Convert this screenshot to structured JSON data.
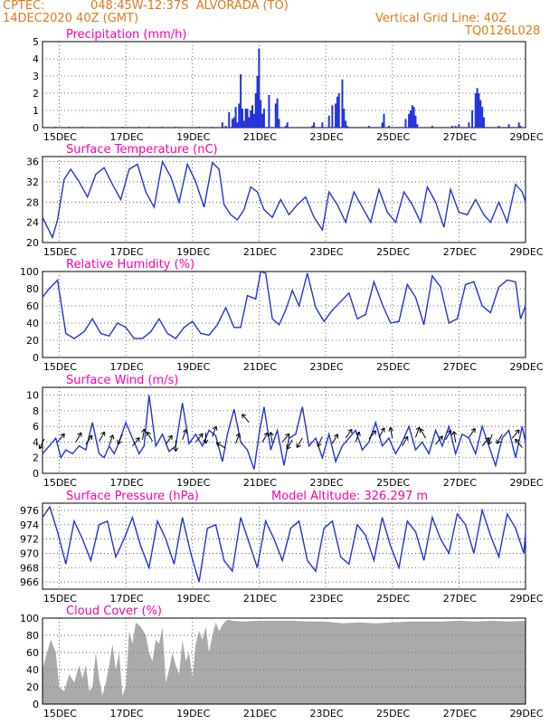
{
  "header": {
    "source": "CPTEC:",
    "location": "048:45W-12:37S  ALVORADA (TO)",
    "run": "14DEC2020 40Z (GMT)",
    "grid_note": "Vertical Grid Line: 40Z",
    "code": "TQ0126L028"
  },
  "colors": {
    "line": "#2233dd",
    "bar": "#2233dd",
    "cloud": "#aaaaaa",
    "title": "#ff00aa",
    "header": "#e07a1a"
  },
  "chart_data": [
    {
      "id": "precipitation",
      "type": "bar",
      "title": "Precipitation (mm/h)",
      "ylim": [
        0,
        5
      ],
      "yticks": [
        "0",
        "1",
        "2",
        "3",
        "4",
        "5"
      ],
      "xlabels": [
        "15DEC",
        "17DEC",
        "19DEC",
        "21DEC",
        "23DEC",
        "25DEC",
        "27DEC",
        "29DEC"
      ],
      "day_start": 14.5,
      "day_end": 29.0,
      "x": [
        14.9,
        15.3,
        15.7,
        16.3,
        16.9,
        17.4,
        17.7,
        18.1,
        18.5,
        19.2,
        19.6,
        19.9,
        20.0,
        20.1,
        20.2,
        20.25,
        20.3,
        20.35,
        20.4,
        20.45,
        20.5,
        20.55,
        20.6,
        20.65,
        20.7,
        20.75,
        20.8,
        20.85,
        20.9,
        20.95,
        21.0,
        21.05,
        21.1,
        21.15,
        21.3,
        21.5,
        21.55,
        21.6,
        21.8,
        21.85,
        22.6,
        22.65,
        22.9,
        23.1,
        23.2,
        23.3,
        23.35,
        23.4,
        23.5,
        23.55,
        23.6,
        23.65,
        24.3,
        24.7,
        24.75,
        24.9,
        25.4,
        25.5,
        25.55,
        25.6,
        25.65,
        25.7,
        25.75,
        26.2,
        26.8,
        26.9,
        27.0,
        27.3,
        27.4,
        27.5,
        27.55,
        27.6,
        27.65,
        27.7,
        27.75,
        28.2,
        28.5,
        28.8,
        28.85
      ],
      "values": [
        0.05,
        0.05,
        0.05,
        0.05,
        0.05,
        0.05,
        0.05,
        0.05,
        0.05,
        0.05,
        0.05,
        0.3,
        0.1,
        0.9,
        0.5,
        0.6,
        1.2,
        0.3,
        1.4,
        3.1,
        1.1,
        0.4,
        1.1,
        1.1,
        0.6,
        1.0,
        1.3,
        0.8,
        2.0,
        3.0,
        4.6,
        1.6,
        0.8,
        1.1,
        1.9,
        1.4,
        1.7,
        0.5,
        0.1,
        0.3,
        0.1,
        0.3,
        0.3,
        0.7,
        1.3,
        1.4,
        1.8,
        2.0,
        2.8,
        1.1,
        0.4,
        0.1,
        0.1,
        0.3,
        0.8,
        0.1,
        0.5,
        0.8,
        1.0,
        1.3,
        1.2,
        0.7,
        0.2,
        0.1,
        0.1,
        0.1,
        0.2,
        0.3,
        1.0,
        2.0,
        2.3,
        2.0,
        1.6,
        1.2,
        0.6,
        0.1,
        0.2,
        0.3,
        0.1
      ]
    },
    {
      "id": "temperature",
      "type": "line",
      "title": "Surface Temperature (nC)",
      "ylim": [
        20,
        37
      ],
      "yticks": [
        "20",
        "24",
        "28",
        "32",
        "36"
      ],
      "xlabels": [
        "15DEC",
        "17DEC",
        "19DEC",
        "21DEC",
        "23DEC",
        "25DEC",
        "27DEC",
        "29DEC"
      ],
      "day_start": 14.5,
      "day_end": 29.0,
      "x": [
        14.5,
        14.8,
        14.95,
        15.15,
        15.35,
        15.6,
        15.85,
        16.1,
        16.35,
        16.6,
        16.85,
        17.1,
        17.35,
        17.6,
        17.85,
        18.1,
        18.35,
        18.6,
        18.85,
        19.1,
        19.35,
        19.6,
        19.8,
        19.95,
        20.15,
        20.35,
        20.55,
        20.75,
        20.95,
        21.15,
        21.4,
        21.65,
        21.9,
        22.15,
        22.4,
        22.65,
        22.9,
        23.1,
        23.35,
        23.6,
        23.85,
        24.1,
        24.35,
        24.6,
        24.85,
        25.1,
        25.35,
        25.6,
        25.85,
        26.05,
        26.3,
        26.55,
        26.75,
        27.0,
        27.25,
        27.5,
        27.75,
        27.95,
        28.2,
        28.45,
        28.7,
        28.9,
        29.0
      ],
      "values": [
        25,
        21.0,
        24.5,
        32.5,
        34.5,
        32.0,
        29.0,
        33.5,
        34.8,
        31.5,
        28.5,
        34.5,
        35.5,
        30.0,
        27.0,
        36.0,
        33.0,
        28.0,
        35.5,
        32.0,
        27.0,
        35.8,
        34.5,
        27.5,
        25.5,
        24.5,
        26.5,
        31.0,
        30.0,
        26.5,
        25.0,
        28.5,
        25.5,
        27.5,
        29.0,
        25.0,
        22.5,
        30.0,
        27.5,
        24.0,
        30.0,
        27.0,
        24.0,
        30.5,
        26.0,
        24.0,
        30.0,
        27.5,
        24.0,
        31.0,
        28.0,
        23.0,
        30.5,
        26.0,
        25.5,
        28.5,
        25.5,
        24.0,
        28.0,
        24.0,
        31.5,
        30.0,
        28.0
      ]
    },
    {
      "id": "humidity",
      "type": "line",
      "title": "Relative Humidity (%)",
      "ylim": [
        0,
        100
      ],
      "yticks": [
        "0",
        "20",
        "40",
        "60",
        "80",
        "100"
      ],
      "xlabels": [
        "15DEC",
        "17DEC",
        "19DEC",
        "21DEC",
        "23DEC",
        "25DEC",
        "27DEC",
        "29DEC"
      ],
      "day_start": 14.5,
      "day_end": 29.0,
      "x": [
        14.5,
        14.7,
        14.95,
        15.2,
        15.45,
        15.75,
        16.0,
        16.25,
        16.5,
        16.75,
        17.0,
        17.25,
        17.5,
        17.75,
        18.0,
        18.25,
        18.5,
        18.75,
        19.0,
        19.25,
        19.5,
        19.75,
        20.0,
        20.25,
        20.45,
        20.65,
        20.9,
        21.05,
        21.2,
        21.4,
        21.6,
        21.8,
        22.0,
        22.2,
        22.45,
        22.7,
        22.95,
        23.2,
        23.45,
        23.7,
        23.95,
        24.2,
        24.45,
        24.7,
        24.95,
        25.2,
        25.45,
        25.7,
        25.95,
        26.2,
        26.45,
        26.7,
        26.95,
        27.2,
        27.45,
        27.7,
        27.95,
        28.2,
        28.45,
        28.7,
        28.85,
        29.0
      ],
      "values": [
        70,
        80,
        90,
        28,
        22,
        30,
        45,
        28,
        25,
        40,
        35,
        22,
        22,
        30,
        45,
        28,
        22,
        35,
        42,
        28,
        26,
        38,
        58,
        35,
        35,
        72,
        68,
        100,
        98,
        45,
        38,
        55,
        78,
        60,
        98,
        58,
        42,
        55,
        65,
        75,
        45,
        50,
        88,
        62,
        40,
        42,
        85,
        70,
        38,
        95,
        82,
        40,
        45,
        85,
        88,
        60,
        52,
        82,
        90,
        88,
        45,
        60
      ]
    },
    {
      "id": "wind",
      "type": "line",
      "title": "Surface Wind (m/s)",
      "ylim": [
        0,
        11
      ],
      "yticks": [
        "0",
        "2",
        "4",
        "6",
        "8",
        "10"
      ],
      "xlabels": [
        "15DEC",
        "17DEC",
        "19DEC",
        "21DEC",
        "23DEC",
        "25DEC",
        "27DEC",
        "29DEC"
      ],
      "day_start": 14.5,
      "day_end": 29.0,
      "x": [
        14.5,
        14.7,
        14.9,
        15.05,
        15.2,
        15.4,
        15.6,
        15.8,
        16.0,
        16.2,
        16.35,
        16.5,
        16.65,
        16.8,
        17.0,
        17.2,
        17.4,
        17.55,
        17.7,
        17.9,
        18.1,
        18.3,
        18.5,
        18.7,
        18.9,
        19.1,
        19.3,
        19.5,
        19.7,
        19.9,
        20.05,
        20.25,
        20.45,
        20.65,
        20.85,
        21.0,
        21.15,
        21.35,
        21.55,
        21.75,
        21.9,
        22.1,
        22.3,
        22.5,
        22.7,
        22.9,
        23.1,
        23.3,
        23.5,
        23.7,
        23.9,
        24.1,
        24.3,
        24.5,
        24.7,
        24.9,
        25.1,
        25.3,
        25.5,
        25.7,
        25.9,
        26.1,
        26.3,
        26.5,
        26.7,
        26.9,
        27.1,
        27.3,
        27.5,
        27.7,
        27.9,
        28.1,
        28.3,
        28.5,
        28.7,
        28.9,
        29.0
      ],
      "values": [
        2.5,
        3.5,
        4.5,
        2.0,
        3.0,
        2.5,
        3.5,
        3.0,
        6.5,
        2.5,
        2.0,
        3.5,
        2.5,
        4.0,
        6.5,
        4.5,
        2.5,
        3.5,
        10.0,
        3.5,
        5.0,
        2.8,
        3.5,
        9.0,
        3.8,
        5.0,
        3.5,
        5.5,
        4.8,
        1.5,
        5.0,
        8.2,
        4.0,
        3.0,
        0.5,
        5.0,
        8.5,
        3.0,
        5.5,
        1.0,
        4.5,
        5.0,
        8.5,
        3.5,
        4.5,
        2.0,
        5.0,
        1.5,
        3.5,
        4.5,
        5.5,
        3.0,
        4.0,
        6.5,
        3.5,
        4.5,
        2.5,
        4.0,
        6.0,
        3.0,
        4.0,
        2.5,
        5.5,
        3.5,
        6.0,
        2.5,
        5.0,
        4.5,
        2.5,
        6.0,
        3.5,
        1.0,
        4.5,
        5.5,
        2.0,
        6.0,
        4.0
      ],
      "arrows": [
        {
          "x": 14.55,
          "y": 4.4,
          "dir": 205
        },
        {
          "x": 14.95,
          "y": 4.0,
          "dir": 40
        },
        {
          "x": 15.5,
          "y": 4.0,
          "dir": 30
        },
        {
          "x": 15.8,
          "y": 3.7,
          "dir": 35
        },
        {
          "x": 16.2,
          "y": 4.1,
          "dir": 30
        },
        {
          "x": 16.5,
          "y": 3.6,
          "dir": 20
        },
        {
          "x": 16.9,
          "y": 5.0,
          "dir": 205
        },
        {
          "x": 17.2,
          "y": 3.5,
          "dir": 40
        },
        {
          "x": 17.5,
          "y": 4.3,
          "dir": 10
        },
        {
          "x": 17.8,
          "y": 4.1,
          "dir": 330
        },
        {
          "x": 18.2,
          "y": 3.7,
          "dir": 35
        },
        {
          "x": 18.5,
          "y": 4.2,
          "dir": 180
        },
        {
          "x": 18.7,
          "y": 4.3,
          "dir": 20
        },
        {
          "x": 19.1,
          "y": 4.0,
          "dir": 40
        },
        {
          "x": 19.4,
          "y": 5.2,
          "dir": 180
        },
        {
          "x": 19.6,
          "y": 4.7,
          "dir": 20
        },
        {
          "x": 20.0,
          "y": 3.2,
          "dir": 300
        },
        {
          "x": 20.3,
          "y": 3.8,
          "dir": 20
        },
        {
          "x": 20.7,
          "y": 6.5,
          "dir": 320
        },
        {
          "x": 21.1,
          "y": 4.0,
          "dir": 30
        },
        {
          "x": 21.4,
          "y": 3.9,
          "dir": 350
        },
        {
          "x": 21.7,
          "y": 4.0,
          "dir": 40
        },
        {
          "x": 22.0,
          "y": 4.3,
          "dir": 210
        },
        {
          "x": 22.3,
          "y": 4.5,
          "dir": 210
        },
        {
          "x": 22.9,
          "y": 4.7,
          "dir": 205
        },
        {
          "x": 23.2,
          "y": 3.8,
          "dir": 30
        },
        {
          "x": 23.6,
          "y": 4.5,
          "dir": 35
        },
        {
          "x": 23.9,
          "y": 4.0,
          "dir": 20
        },
        {
          "x": 24.3,
          "y": 4.4,
          "dir": 40
        },
        {
          "x": 24.6,
          "y": 4.6,
          "dir": 30
        },
        {
          "x": 25.0,
          "y": 4.5,
          "dir": 350
        },
        {
          "x": 25.3,
          "y": 3.5,
          "dir": 30
        },
        {
          "x": 25.7,
          "y": 4.6,
          "dir": 20
        },
        {
          "x": 26.0,
          "y": 4.5,
          "dir": 330
        },
        {
          "x": 26.3,
          "y": 3.7,
          "dir": 40
        },
        {
          "x": 26.6,
          "y": 4.3,
          "dir": 30
        },
        {
          "x": 26.9,
          "y": 4.0,
          "dir": 350
        },
        {
          "x": 27.3,
          "y": 4.6,
          "dir": 35
        },
        {
          "x": 27.7,
          "y": 3.5,
          "dir": 40
        },
        {
          "x": 28.0,
          "y": 5.0,
          "dir": 200
        },
        {
          "x": 28.3,
          "y": 5.0,
          "dir": 210
        },
        {
          "x": 28.6,
          "y": 4.5,
          "dir": 40
        },
        {
          "x": 28.9,
          "y": 3.3,
          "dir": 320
        }
      ]
    },
    {
      "id": "pressure",
      "type": "line",
      "title": "Surface Pressure (hPa)",
      "annotation": "Model Altitude: 326.297  m",
      "ylim": [
        965,
        977
      ],
      "yticks": [
        "966",
        "968",
        "970",
        "972",
        "974",
        "976"
      ],
      "xlabels": [
        "15DEC",
        "17DEC",
        "19DEC",
        "21DEC",
        "23DEC",
        "25DEC",
        "27DEC",
        "29DEC"
      ],
      "day_start": 14.5,
      "day_end": 29.0,
      "x": [
        14.5,
        14.72,
        14.95,
        15.2,
        15.45,
        15.7,
        15.95,
        16.2,
        16.45,
        16.7,
        16.95,
        17.2,
        17.45,
        17.7,
        17.95,
        18.2,
        18.45,
        18.7,
        18.95,
        19.2,
        19.45,
        19.7,
        19.95,
        20.2,
        20.45,
        20.7,
        20.95,
        21.2,
        21.45,
        21.7,
        21.95,
        22.2,
        22.45,
        22.7,
        22.95,
        23.2,
        23.45,
        23.7,
        23.95,
        24.2,
        24.45,
        24.7,
        24.95,
        25.2,
        25.45,
        25.7,
        25.95,
        26.2,
        26.45,
        26.7,
        26.95,
        27.2,
        27.45,
        27.7,
        27.95,
        28.2,
        28.45,
        28.7,
        28.95,
        29.0
      ],
      "values": [
        975,
        976.5,
        973,
        968.5,
        974.5,
        972,
        969,
        974,
        974.5,
        969.5,
        972,
        975,
        971,
        968,
        974.5,
        972,
        968.5,
        975,
        970,
        966,
        973.5,
        974,
        969,
        967.5,
        975,
        971.5,
        968,
        974.5,
        972,
        969,
        973.5,
        974.5,
        969,
        967.5,
        973.5,
        974.5,
        969.5,
        968.5,
        974,
        972.5,
        969,
        975,
        971,
        968,
        974.5,
        973,
        969,
        975,
        972,
        970,
        975.5,
        974,
        970,
        976,
        972.5,
        969.5,
        975.5,
        973.5,
        970,
        973
      ]
    },
    {
      "id": "cloud",
      "type": "area",
      "title": "Cloud Cover (%)",
      "ylim": [
        0,
        100
      ],
      "yticks": [
        "0",
        "20",
        "40",
        "60",
        "80",
        "100"
      ],
      "xlabels": [
        "15DEC",
        "17DEC",
        "19DEC",
        "21DEC",
        "23DEC",
        "25DEC",
        "27DEC",
        "29DEC"
      ],
      "day_start": 14.5,
      "day_end": 29.0,
      "x": [
        14.5,
        14.6,
        14.75,
        14.9,
        15.0,
        15.15,
        15.3,
        15.45,
        15.6,
        15.7,
        15.8,
        15.9,
        16.0,
        16.1,
        16.2,
        16.3,
        16.4,
        16.5,
        16.6,
        16.7,
        16.8,
        16.9,
        17.0,
        17.1,
        17.2,
        17.3,
        17.45,
        17.6,
        17.7,
        17.8,
        17.9,
        18.0,
        18.1,
        18.2,
        18.3,
        18.4,
        18.5,
        18.6,
        18.7,
        18.8,
        18.9,
        19.0,
        19.1,
        19.2,
        19.3,
        19.4,
        19.5,
        19.6,
        19.7,
        19.8,
        19.9,
        20.0,
        20.1,
        20.2,
        20.5,
        21.0,
        21.5,
        22.0,
        22.5,
        23.0,
        23.5,
        24.0,
        24.5,
        25.0,
        25.5,
        26.0,
        26.5,
        27.0,
        27.5,
        28.0,
        28.5,
        29.0
      ],
      "values": [
        40,
        55,
        75,
        60,
        20,
        15,
        35,
        25,
        45,
        30,
        45,
        15,
        20,
        60,
        30,
        10,
        25,
        45,
        70,
        40,
        60,
        10,
        20,
        85,
        70,
        95,
        90,
        80,
        60,
        50,
        75,
        70,
        90,
        25,
        40,
        60,
        45,
        35,
        75,
        50,
        60,
        30,
        70,
        85,
        75,
        90,
        60,
        80,
        95,
        85,
        92,
        97,
        98,
        97,
        96,
        97,
        97,
        97,
        96,
        96,
        94,
        95,
        94,
        95,
        96,
        96,
        96,
        97,
        96,
        97,
        96,
        97
      ]
    }
  ]
}
